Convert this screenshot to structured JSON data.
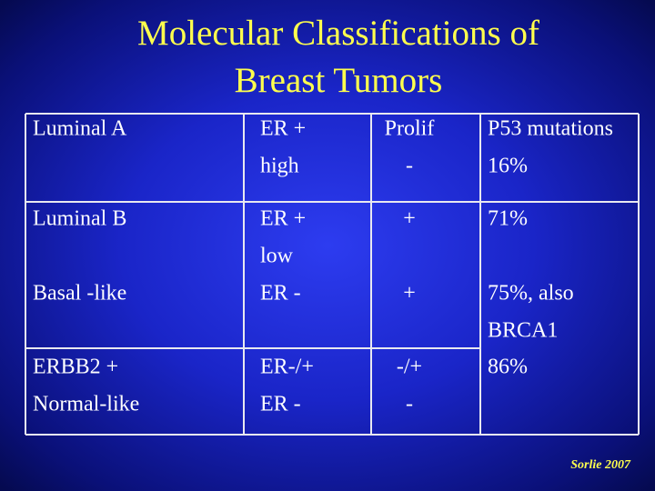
{
  "title": [
    "Molecular Classifications of",
    "Breast Tumors"
  ],
  "table": {
    "rows": [
      [
        [
          "Luminal A"
        ],
        [
          "ER +",
          "high"
        ],
        [
          "Prolif",
          "-"
        ],
        [
          "P53 mutations",
          "16%"
        ]
      ],
      [
        [
          "Luminal B",
          null,
          "Basal -like"
        ],
        [
          "ER +",
          "low",
          "ER -"
        ],
        [
          "+",
          null,
          "+"
        ],
        [
          "71%",
          null,
          "75%, also",
          "BRCA1"
        ]
      ],
      [
        [
          "ERBB2 +",
          "Normal-like"
        ],
        [
          "ER-/+",
          "ER -"
        ],
        [
          "-/+",
          "-"
        ],
        [
          "86%"
        ]
      ]
    ]
  },
  "footer": "Sorlie 2007"
}
